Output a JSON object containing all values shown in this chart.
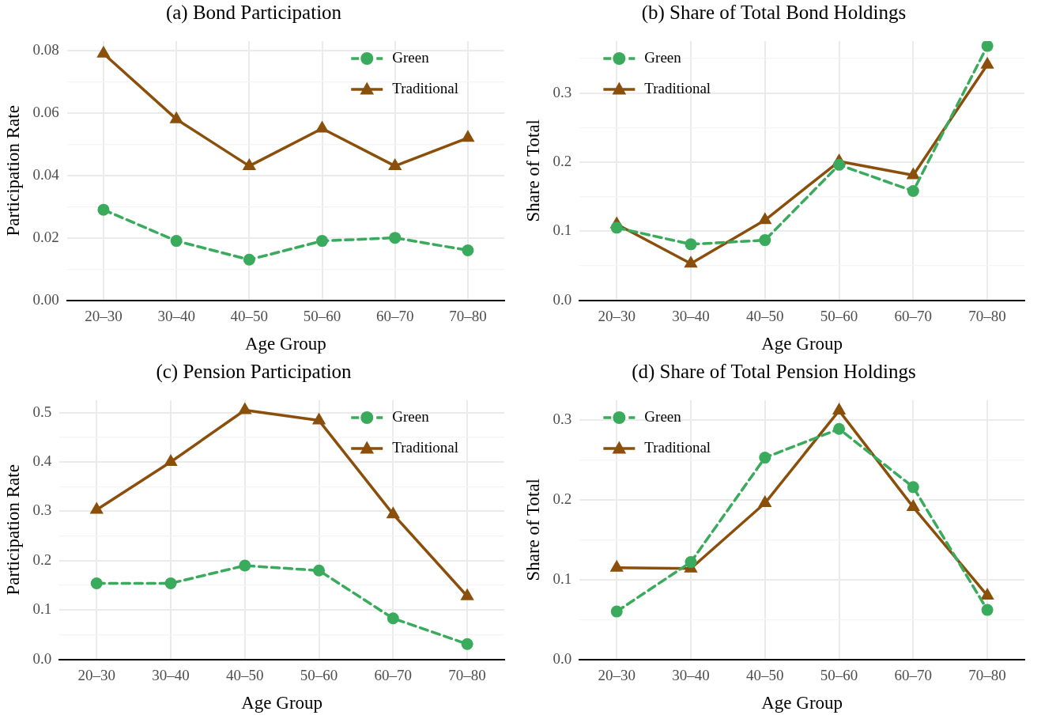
{
  "chart_data": [
    {
      "type": "line",
      "title": "(a) Bond Participation",
      "xlabel": "Age Group",
      "ylabel": "Participation Rate",
      "categories": [
        "20–30",
        "30–40",
        "40–50",
        "50–60",
        "60–70",
        "70–80"
      ],
      "series": [
        {
          "name": "Green",
          "color": "#3aaa5c",
          "marker": "circle",
          "line_style": "dashed",
          "values": [
            0.029,
            0.019,
            0.013,
            0.019,
            0.02,
            0.016
          ]
        },
        {
          "name": "Traditional",
          "color": "#8b4f0c",
          "marker": "triangle",
          "line_style": "solid",
          "values": [
            0.079,
            0.058,
            0.043,
            0.055,
            0.043,
            0.052
          ]
        }
      ],
      "ylim": [
        0,
        0.083
      ],
      "yticks": [
        {
          "value": 0,
          "label": "0.00"
        },
        {
          "value": 0.01,
          "label": null
        },
        {
          "value": 0.02,
          "label": "0.02"
        },
        {
          "value": 0.03,
          "label": null
        },
        {
          "value": 0.04,
          "label": "0.04"
        },
        {
          "value": 0.05,
          "label": null
        },
        {
          "value": 0.06,
          "label": "0.06"
        },
        {
          "value": 0.07,
          "label": null
        },
        {
          "value": 0.08,
          "label": "0.08"
        }
      ],
      "grid": true,
      "legend": "top right"
    },
    {
      "type": "line",
      "title": "(b) Share of Total Bond Holdings",
      "xlabel": "Age Group",
      "ylabel": "Share of Total",
      "categories": [
        "20–30",
        "30–40",
        "40–50",
        "50–60",
        "60–70",
        "70–80"
      ],
      "series": [
        {
          "name": "Green",
          "color": "#3aaa5c",
          "marker": "circle",
          "line_style": "dashed",
          "values": [
            0.105,
            0.081,
            0.087,
            0.196,
            0.158,
            0.368
          ]
        },
        {
          "name": "Traditional",
          "color": "#8b4f0c",
          "marker": "triangle",
          "line_style": "solid",
          "values": [
            0.11,
            0.053,
            0.116,
            0.201,
            0.181,
            0.341
          ]
        }
      ],
      "ylim": [
        0,
        0.375
      ],
      "yticks": [
        {
          "value": 0,
          "label": "0.0"
        },
        {
          "value": 0.05,
          "label": null
        },
        {
          "value": 0.1,
          "label": "0.1"
        },
        {
          "value": 0.15,
          "label": null
        },
        {
          "value": 0.2,
          "label": "0.2"
        },
        {
          "value": 0.25,
          "label": null
        },
        {
          "value": 0.3,
          "label": "0.3"
        },
        {
          "value": 0.35,
          "label": null
        }
      ],
      "grid": true,
      "legend": "top left"
    },
    {
      "type": "line",
      "title": "(c) Pension Participation",
      "xlabel": "Age Group",
      "ylabel": "Participation Rate",
      "categories": [
        "20–30",
        "30–40",
        "40–50",
        "50–60",
        "60–70",
        "70–80"
      ],
      "series": [
        {
          "name": "Green",
          "color": "#3aaa5c",
          "marker": "circle",
          "line_style": "dashed",
          "values": [
            0.154,
            0.154,
            0.19,
            0.18,
            0.083,
            0.031
          ]
        },
        {
          "name": "Traditional",
          "color": "#8b4f0c",
          "marker": "triangle",
          "line_style": "solid",
          "values": [
            0.303,
            0.4,
            0.505,
            0.484,
            0.294,
            0.128
          ]
        }
      ],
      "ylim": [
        0,
        0.525
      ],
      "yticks": [
        {
          "value": 0,
          "label": "0.0"
        },
        {
          "value": 0.05,
          "label": null
        },
        {
          "value": 0.1,
          "label": "0.1"
        },
        {
          "value": 0.15,
          "label": null
        },
        {
          "value": 0.2,
          "label": "0.2"
        },
        {
          "value": 0.25,
          "label": null
        },
        {
          "value": 0.3,
          "label": "0.3"
        },
        {
          "value": 0.35,
          "label": null
        },
        {
          "value": 0.4,
          "label": "0.4"
        },
        {
          "value": 0.45,
          "label": null
        },
        {
          "value": 0.5,
          "label": "0.5"
        }
      ],
      "grid": true,
      "legend": "top right"
    },
    {
      "type": "line",
      "title": "(d) Share of Total Pension Holdings",
      "xlabel": "Age Group",
      "ylabel": "Share of Total",
      "categories": [
        "20–30",
        "30–40",
        "40–50",
        "50–60",
        "60–70",
        "70–80"
      ],
      "series": [
        {
          "name": "Green",
          "color": "#3aaa5c",
          "marker": "circle",
          "line_style": "dashed",
          "values": [
            0.06,
            0.122,
            0.253,
            0.289,
            0.216,
            0.062
          ]
        },
        {
          "name": "Traditional",
          "color": "#8b4f0c",
          "marker": "triangle",
          "line_style": "solid",
          "values": [
            0.115,
            0.114,
            0.196,
            0.312,
            0.191,
            0.08
          ]
        }
      ],
      "ylim": [
        0,
        0.325
      ],
      "yticks": [
        {
          "value": 0,
          "label": "0.0"
        },
        {
          "value": 0.05,
          "label": null
        },
        {
          "value": 0.1,
          "label": "0.1"
        },
        {
          "value": 0.15,
          "label": null
        },
        {
          "value": 0.2,
          "label": "0.2"
        },
        {
          "value": 0.25,
          "label": null
        },
        {
          "value": 0.3,
          "label": "0.3"
        }
      ],
      "grid": true,
      "legend": "top left"
    }
  ]
}
